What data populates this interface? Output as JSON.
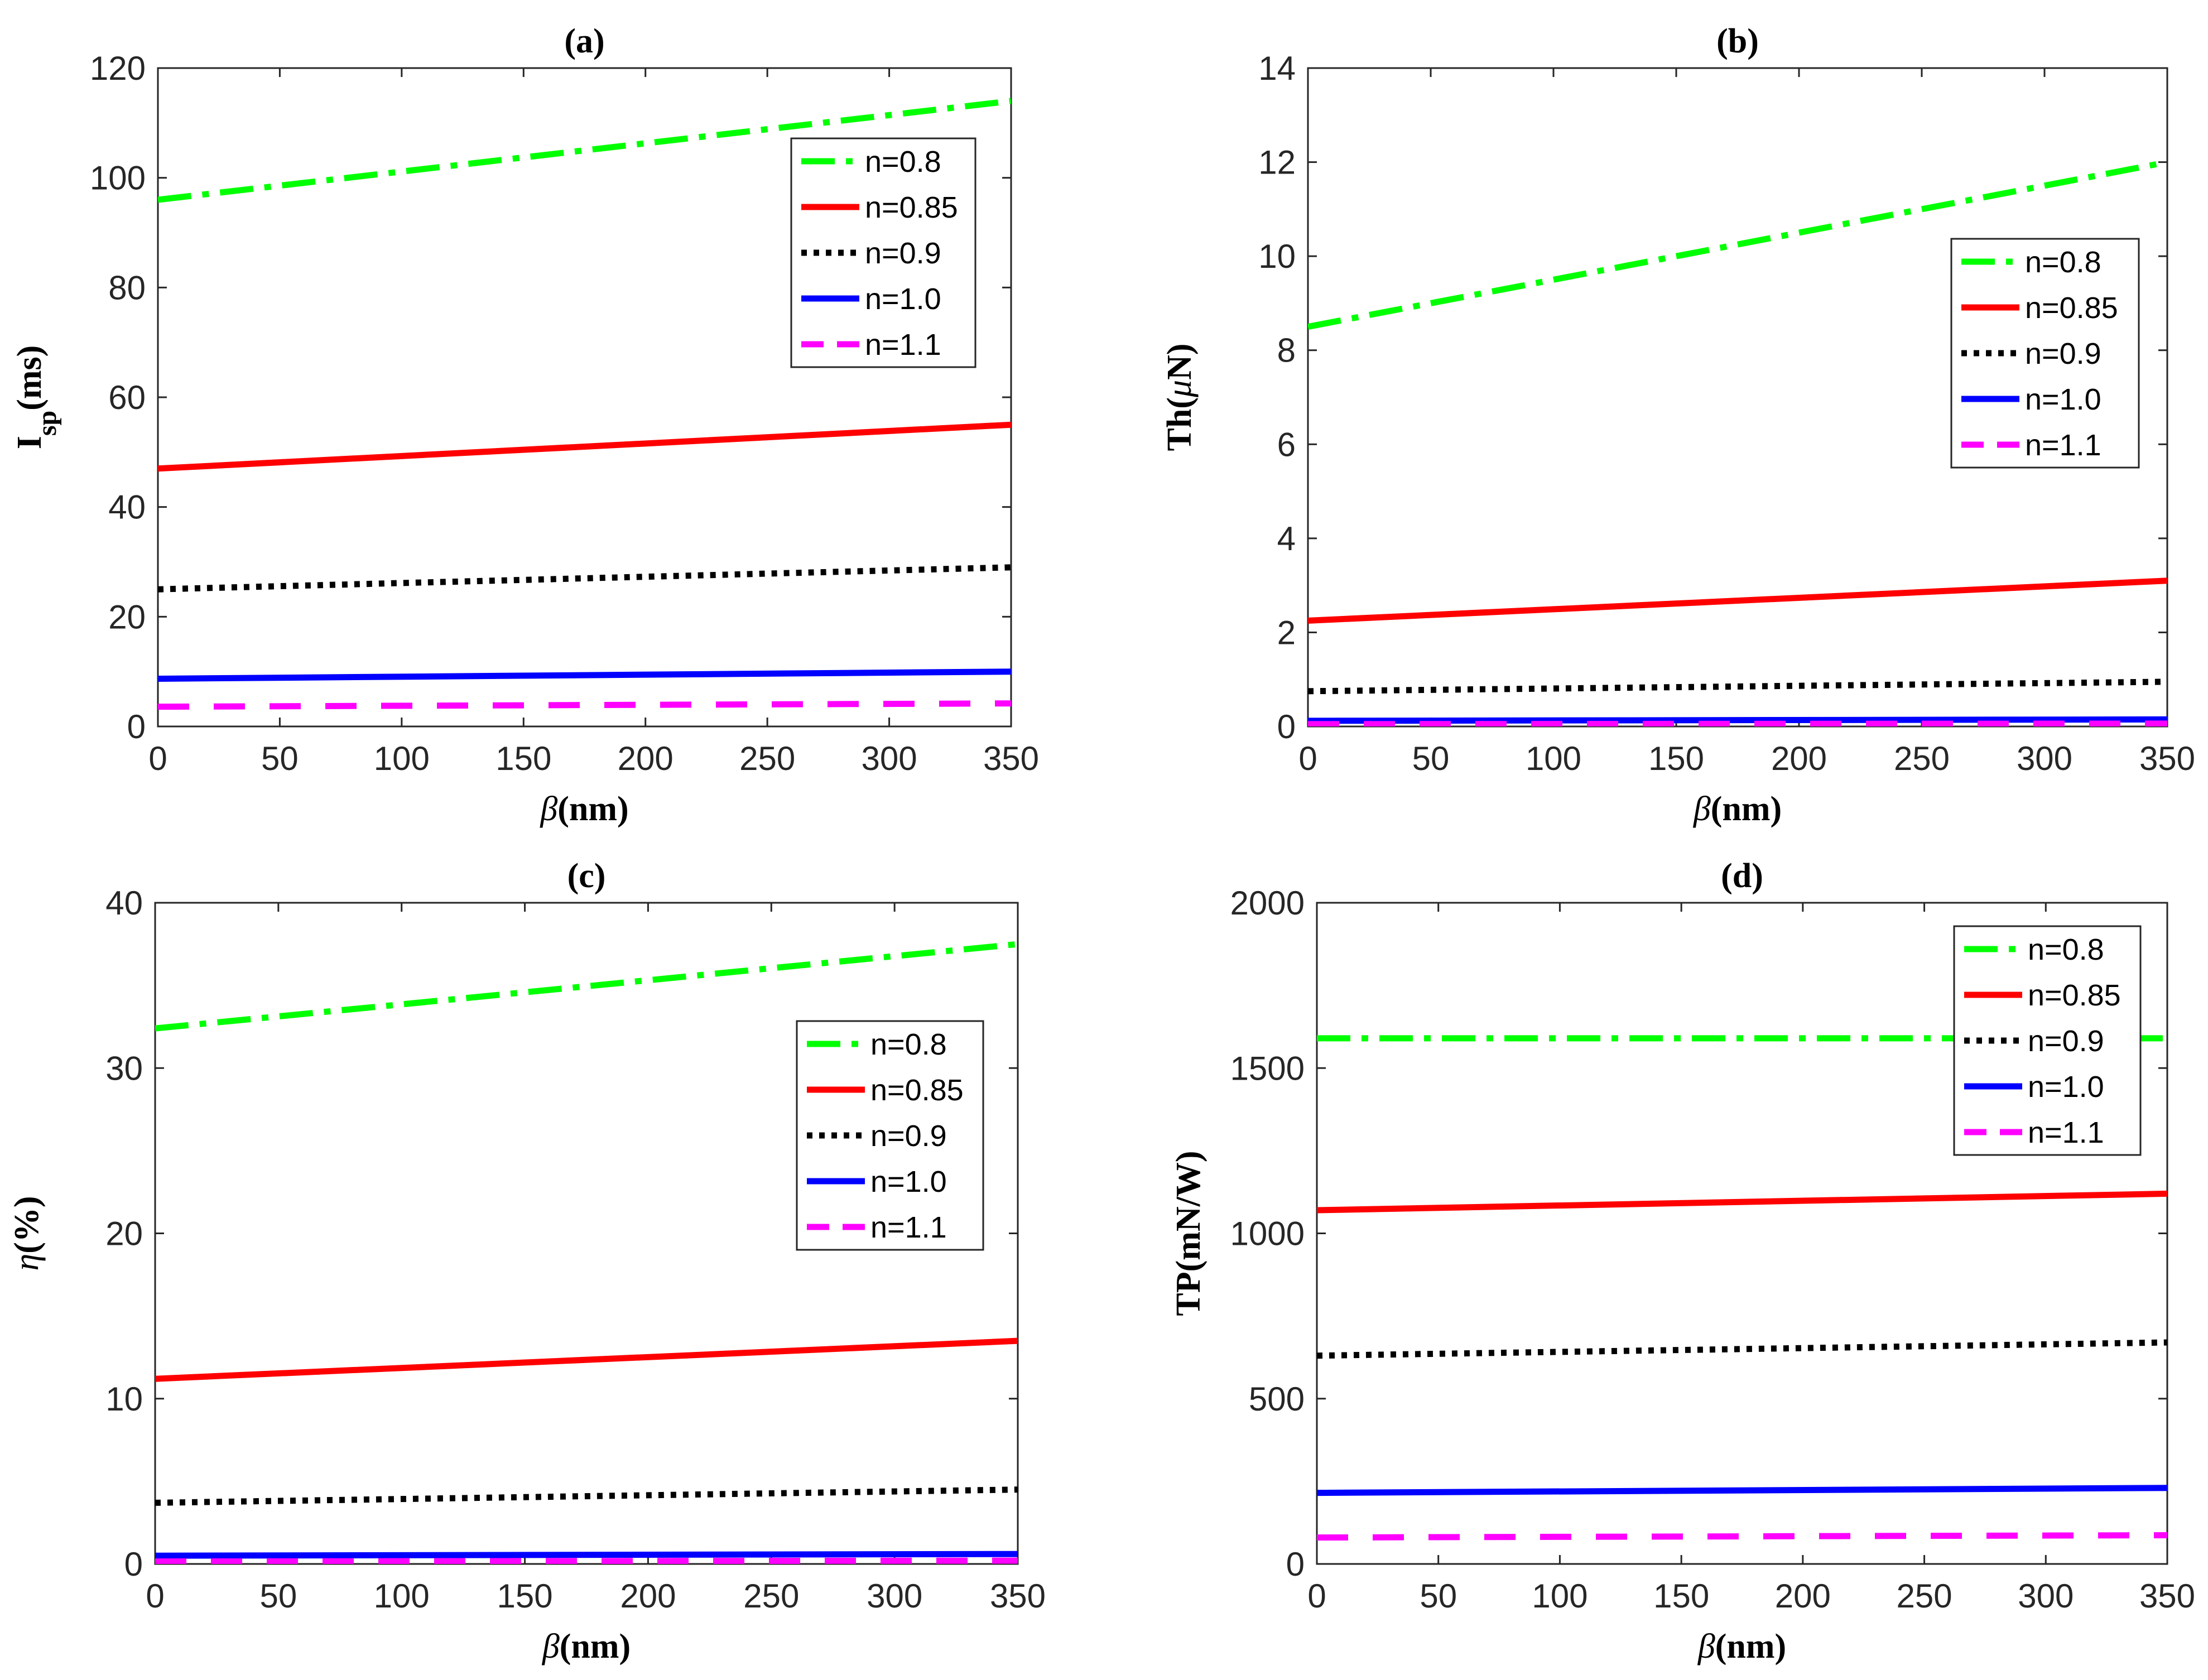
{
  "chart_data": [
    {
      "type": "line",
      "title": "(a)",
      "xlabel": "β(nm)",
      "ylabel": "Isp(ms)",
      "ylabel_main": "I",
      "ylabel_sub": "sp",
      "ylabel_unit": "(ms)",
      "xlim": [
        0,
        350
      ],
      "ylim": [
        0,
        120
      ],
      "xticks": [
        0,
        50,
        100,
        150,
        200,
        250,
        300,
        350
      ],
      "yticks": [
        0,
        20,
        40,
        60,
        80,
        100,
        120
      ],
      "x": [
        0,
        350
      ],
      "legend_position": "upper-right",
      "series": [
        {
          "name": "n=0.8",
          "values": [
            96,
            114
          ]
        },
        {
          "name": "n=0.85",
          "values": [
            47,
            55
          ]
        },
        {
          "name": "n=0.9",
          "values": [
            25,
            29
          ]
        },
        {
          "name": "n=1.0",
          "values": [
            8.7,
            10
          ]
        },
        {
          "name": "n=1.1",
          "values": [
            3.6,
            4.2
          ]
        }
      ]
    },
    {
      "type": "line",
      "title": "(b)",
      "xlabel": "β(nm)",
      "ylabel": "Th(μN)",
      "ylabel_main": "Th(",
      "ylabel_sym": "μ",
      "ylabel_unit": "N)",
      "xlim": [
        0,
        350
      ],
      "ylim": [
        0,
        14
      ],
      "xticks": [
        0,
        50,
        100,
        150,
        200,
        250,
        300,
        350
      ],
      "yticks": [
        0,
        2,
        4,
        6,
        8,
        10,
        12,
        14
      ],
      "x": [
        0,
        350
      ],
      "legend_position": "right",
      "series": [
        {
          "name": "n=0.8",
          "values": [
            8.5,
            12
          ]
        },
        {
          "name": "n=0.85",
          "values": [
            2.25,
            3.1
          ]
        },
        {
          "name": "n=0.9",
          "values": [
            0.75,
            0.95
          ]
        },
        {
          "name": "n=1.0",
          "values": [
            0.12,
            0.15
          ]
        },
        {
          "name": "n=1.1",
          "values": [
            0.05,
            0.06
          ]
        }
      ]
    },
    {
      "type": "line",
      "title": "(c)",
      "xlabel": "β(nm)",
      "ylabel": "η(%)",
      "ylabel_main": "",
      "ylabel_sym": "η",
      "ylabel_unit": "(%)",
      "xlim": [
        0,
        350
      ],
      "ylim": [
        0,
        40
      ],
      "xticks": [
        0,
        50,
        100,
        150,
        200,
        250,
        300,
        350
      ],
      "yticks": [
        0,
        10,
        20,
        30,
        40
      ],
      "x": [
        0,
        350
      ],
      "legend_position": "right",
      "series": [
        {
          "name": "n=0.8",
          "values": [
            32.4,
            37.5
          ]
        },
        {
          "name": "n=0.85",
          "values": [
            11.2,
            13.5
          ]
        },
        {
          "name": "n=0.9",
          "values": [
            3.7,
            4.5
          ]
        },
        {
          "name": "n=1.0",
          "values": [
            0.5,
            0.6
          ]
        },
        {
          "name": "n=1.1",
          "values": [
            0.15,
            0.2
          ]
        }
      ]
    },
    {
      "type": "line",
      "title": "(d)",
      "xlabel": "β(nm)",
      "ylabel": "TP(mN/W)",
      "ylabel_main": "TP(mN/W)",
      "xlim": [
        0,
        350
      ],
      "ylim": [
        0,
        2000
      ],
      "xticks": [
        0,
        50,
        100,
        150,
        200,
        250,
        300,
        350
      ],
      "yticks": [
        0,
        500,
        1000,
        1500,
        2000
      ],
      "x": [
        0,
        350
      ],
      "legend_position": "upper-right",
      "series": [
        {
          "name": "n=0.8",
          "values": [
            1590,
            1590
          ]
        },
        {
          "name": "n=0.85",
          "values": [
            1070,
            1120
          ]
        },
        {
          "name": "n=0.9",
          "values": [
            630,
            670
          ]
        },
        {
          "name": "n=1.0",
          "values": [
            215,
            230
          ]
        },
        {
          "name": "n=1.1",
          "values": [
            80,
            87
          ]
        }
      ]
    }
  ],
  "series_styles": [
    {
      "color": "#00ff00",
      "dash": "dashdot"
    },
    {
      "color": "#ff0000",
      "dash": "solid"
    },
    {
      "color": "#000000",
      "dash": "dotted"
    },
    {
      "color": "#0000ff",
      "dash": "solid"
    },
    {
      "color": "#ff00ff",
      "dash": "dashed"
    }
  ]
}
